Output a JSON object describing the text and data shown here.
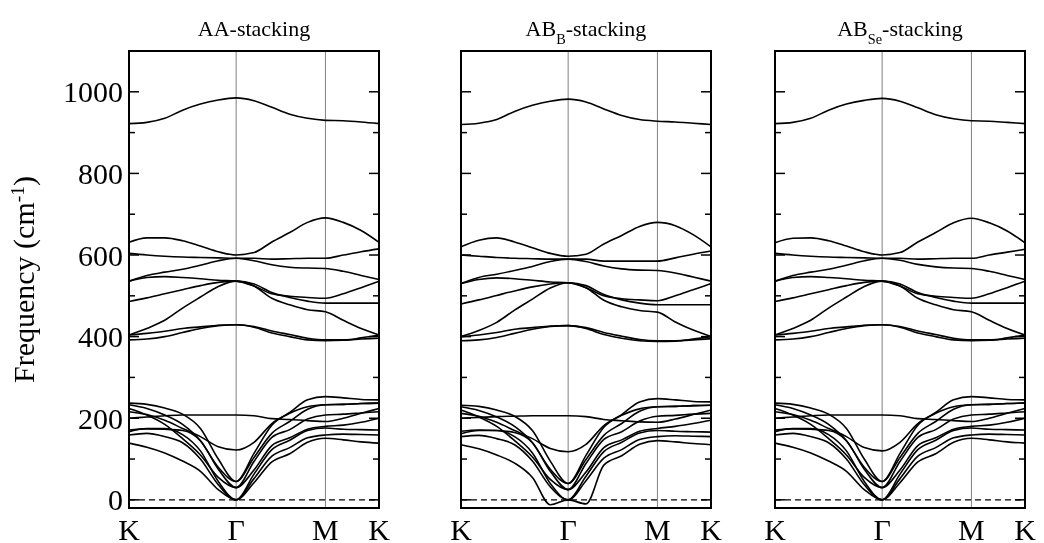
{
  "chart_data": [
    {
      "type": "line",
      "title": "AA-stacking",
      "ylabel": "Frequency (cm$^{-1}$)",
      "categories": [
        "K",
        null,
        null,
        null,
        null,
        null,
        "Γ",
        null,
        null,
        null,
        null,
        "M",
        null,
        null,
        "K"
      ],
      "ylim": [
        -20,
        1100
      ],
      "yticks": [
        0,
        {
          "value": 100,
          "label": null
        },
        200,
        {
          "value": 300,
          "label": null
        },
        400,
        {
          "value": 500,
          "label": null
        },
        600,
        {
          "value": 700,
          "label": null
        },
        800,
        {
          "value": 900,
          "label": null
        },
        1000
      ],
      "ref_lines": [
        {
          "axis": "x",
          "value": "Γ",
          "color": "#808080"
        },
        {
          "axis": "x",
          "value": "M",
          "color": "#808080"
        },
        {
          "axis": "y",
          "value": 0,
          "color": "#000000",
          "line_style": "dashed"
        }
      ],
      "series": [
        {
          "color": "#000000",
          "values": [
            922,
            925,
            935,
            955,
            970,
            980,
            985,
            978,
            962,
            945,
            935,
            930,
            929,
            926,
            922
          ]
        },
        {
          "color": "#000000",
          "values": [
            631,
            642,
            642,
            635,
            622,
            608,
            600,
            606,
            632,
            655,
            680,
            691,
            680,
            660,
            631
          ]
        },
        {
          "color": "#000000",
          "values": [
            604,
            600,
            597,
            595,
            594,
            593,
            592,
            586,
            576,
            570,
            568,
            567,
            560,
            550,
            540
          ]
        },
        {
          "color": "#000000",
          "values": [
            536,
            550,
            558,
            565,
            575,
            586,
            592,
            592,
            590,
            591,
            592,
            592,
            600,
            608,
            615
          ]
        },
        {
          "color": "#000000",
          "values": [
            536,
            545,
            547,
            545,
            542,
            538,
            536,
            524,
            505,
            499,
            496,
            494,
            505,
            520,
            536
          ]
        },
        {
          "color": "#000000",
          "values": [
            486,
            495,
            505,
            515,
            525,
            533,
            536,
            529,
            508,
            496,
            487,
            482,
            482,
            482,
            482
          ]
        },
        {
          "color": "#000000",
          "values": [
            404,
            420,
            440,
            470,
            497,
            523,
            536,
            524,
            494,
            478,
            466,
            461,
            440,
            420,
            404
          ]
        },
        {
          "color": "#000000",
          "values": [
            404,
            408,
            413,
            420,
            424,
            428,
            429,
            425,
            414,
            405,
            396,
            392,
            392,
            394,
            396
          ]
        },
        {
          "color": "#000000",
          "values": [
            392,
            394,
            400,
            410,
            420,
            427,
            429,
            423,
            409,
            400,
            392,
            390,
            391,
            397,
            404
          ]
        },
        {
          "color": "#000000",
          "values": [
            200,
            203,
            206,
            208,
            208,
            208,
            208,
            206,
            199,
            197,
            194,
            192,
            200,
            212,
            224
          ]
        },
        {
          "color": "#000000",
          "values": [
            216,
            209,
            195,
            175,
            155,
            130,
            122,
            141,
            187,
            212,
            228,
            233,
            234,
            236,
            237
          ]
        },
        {
          "color": "#000000",
          "values": [
            237,
            234,
            225,
            210,
            175,
            100,
            45,
            114,
            183,
            214,
            245,
            253,
            250,
            246,
            245
          ]
        },
        {
          "color": "#000000",
          "values": [
            233,
            224,
            208,
            185,
            145,
            80,
            45,
            104,
            163,
            192,
            222,
            233,
            234,
            236,
            237
          ]
        },
        {
          "color": "#000000",
          "values": [
            224,
            208,
            185,
            150,
            110,
            55,
            30,
            94,
            153,
            172,
            198,
            208,
            210,
            213,
            216
          ]
        },
        {
          "color": "#000000",
          "values": [
            171,
            174,
            173,
            170,
            145,
            75,
            30,
            73,
            133,
            152,
            173,
            180,
            183,
            190,
            200
          ]
        },
        {
          "color": "#000000",
          "values": [
            167,
            175,
            175,
            160,
            120,
            45,
            0,
            63,
            123,
            146,
            170,
            176,
            173,
            172,
            171
          ]
        },
        {
          "color": "#000000",
          "values": [
            159,
            163,
            155,
            140,
            100,
            37,
            0,
            52,
            107,
            128,
            152,
            159,
            161,
            160,
            159
          ]
        },
        {
          "color": "#000000",
          "values": [
            139,
            129,
            115,
            95,
            70,
            25,
            0,
            42,
            93,
            113,
            141,
            151,
            147,
            142,
            139
          ]
        }
      ]
    },
    {
      "type": "line",
      "title": "AB$_{B}$-stacking",
      "tick_labels": "x",
      "categories": [
        "K",
        null,
        null,
        null,
        null,
        null,
        "Γ",
        null,
        null,
        null,
        null,
        "M",
        null,
        null,
        "K"
      ],
      "ylim": [
        -20,
        1100
      ],
      "yticks": [
        0,
        {
          "value": 100,
          "label": null
        },
        200,
        {
          "value": 300,
          "label": null
        },
        400,
        {
          "value": 500,
          "label": null
        },
        600,
        {
          "value": 700,
          "label": null
        },
        800,
        {
          "value": 900,
          "label": null
        },
        1000
      ],
      "ref_lines": [
        {
          "axis": "x",
          "value": "Γ",
          "color": "#808080"
        },
        {
          "axis": "x",
          "value": "M",
          "color": "#808080"
        },
        {
          "axis": "y",
          "value": 0,
          "color": "#000000",
          "line_style": "dashed"
        }
      ],
      "series": [
        {
          "color": "#000000",
          "values": [
            920,
            923,
            932,
            952,
            967,
            977,
            982,
            975,
            958,
            942,
            932,
            928,
            926,
            923,
            920
          ]
        },
        {
          "color": "#000000",
          "values": [
            620,
            636,
            642,
            632,
            618,
            604,
            597,
            602,
            627,
            648,
            670,
            680,
            672,
            650,
            620
          ]
        },
        {
          "color": "#000000",
          "values": [
            600,
            597,
            594,
            592,
            591,
            590,
            590,
            584,
            573,
            566,
            563,
            562,
            556,
            546,
            536
          ]
        },
        {
          "color": "#000000",
          "values": [
            530,
            545,
            553,
            562,
            572,
            584,
            590,
            590,
            585,
            585,
            585,
            585,
            593,
            602,
            610
          ]
        },
        {
          "color": "#000000",
          "values": [
            530,
            540,
            544,
            542,
            538,
            534,
            532,
            520,
            500,
            493,
            490,
            488,
            500,
            515,
            530
          ]
        },
        {
          "color": "#000000",
          "values": [
            480,
            490,
            501,
            512,
            522,
            529,
            532,
            525,
            503,
            490,
            482,
            478,
            478,
            478,
            478
          ]
        },
        {
          "color": "#000000",
          "values": [
            400,
            415,
            435,
            465,
            492,
            519,
            532,
            520,
            489,
            473,
            464,
            460,
            436,
            416,
            400
          ]
        },
        {
          "color": "#000000",
          "values": [
            400,
            404,
            410,
            418,
            422,
            426,
            427,
            422,
            410,
            401,
            393,
            390,
            390,
            392,
            395
          ]
        },
        {
          "color": "#000000",
          "values": [
            390,
            392,
            398,
            408,
            418,
            425,
            427,
            420,
            405,
            396,
            390,
            388,
            389,
            394,
            400
          ]
        },
        {
          "color": "#000000",
          "values": [
            200,
            202,
            204,
            205,
            206,
            206,
            206,
            204,
            197,
            194,
            191,
            190,
            198,
            209,
            220
          ]
        },
        {
          "color": "#000000",
          "values": [
            212,
            205,
            190,
            170,
            150,
            126,
            118,
            136,
            182,
            207,
            223,
            228,
            229,
            231,
            232
          ]
        },
        {
          "color": "#000000",
          "values": [
            232,
            229,
            220,
            205,
            170,
            95,
            40,
            109,
            178,
            209,
            240,
            248,
            245,
            241,
            240
          ]
        },
        {
          "color": "#000000",
          "values": [
            228,
            219,
            203,
            180,
            140,
            75,
            40,
            99,
            158,
            187,
            217,
            228,
            229,
            231,
            232
          ]
        },
        {
          "color": "#000000",
          "values": [
            220,
            203,
            180,
            145,
            105,
            50,
            25,
            89,
            148,
            167,
            193,
            205,
            207,
            210,
            212
          ]
        },
        {
          "color": "#000000",
          "values": [
            168,
            171,
            170,
            165,
            140,
            70,
            25,
            68,
            128,
            147,
            168,
            175,
            180,
            187,
            195
          ]
        },
        {
          "color": "#000000",
          "values": [
            162,
            170,
            170,
            155,
            115,
            40,
            0,
            58,
            118,
            141,
            164,
            170,
            168,
            167,
            166
          ]
        },
        {
          "color": "#000000",
          "values": [
            155,
            158,
            150,
            135,
            95,
            32,
            0,
            47,
            102,
            123,
            148,
            155,
            157,
            156,
            155
          ]
        },
        {
          "color": "#000000",
          "values": [
            135,
            125,
            110,
            90,
            55,
            -12,
            0,
            -10,
            85,
            108,
            136,
            145,
            142,
            138,
            135
          ]
        }
      ]
    },
    {
      "type": "line",
      "title": "AB$_{Se}$-stacking",
      "tick_labels": "x",
      "categories": [
        "K",
        null,
        null,
        null,
        null,
        null,
        "Γ",
        null,
        null,
        null,
        null,
        "M",
        null,
        null,
        "K"
      ],
      "ylim": [
        -20,
        1100
      ],
      "yticks": [
        0,
        {
          "value": 100,
          "label": null
        },
        200,
        {
          "value": 300,
          "label": null
        },
        400,
        {
          "value": 500,
          "label": null
        },
        600,
        {
          "value": 700,
          "label": null
        },
        800,
        {
          "value": 900,
          "label": null
        },
        1000
      ],
      "ref_lines": [
        {
          "axis": "x",
          "value": "Γ",
          "color": "#808080"
        },
        {
          "axis": "x",
          "value": "M",
          "color": "#808080"
        },
        {
          "axis": "y",
          "value": 0,
          "color": "#000000",
          "line_style": "dashed"
        }
      ],
      "series": [
        {
          "color": "#000000",
          "values": [
            922,
            925,
            935,
            955,
            970,
            979,
            984,
            977,
            961,
            944,
            934,
            929,
            928,
            925,
            922
          ]
        },
        {
          "color": "#000000",
          "values": [
            630,
            641,
            642,
            635,
            622,
            608,
            600,
            606,
            632,
            655,
            679,
            690,
            679,
            659,
            630
          ]
        },
        {
          "color": "#000000",
          "values": [
            604,
            600,
            597,
            595,
            594,
            593,
            592,
            587,
            577,
            571,
            568,
            567,
            560,
            550,
            540
          ]
        },
        {
          "color": "#000000",
          "values": [
            536,
            550,
            558,
            565,
            575,
            586,
            592,
            592,
            590,
            591,
            592,
            592,
            600,
            607,
            614
          ]
        },
        {
          "color": "#000000",
          "values": [
            536,
            545,
            547,
            545,
            542,
            538,
            536,
            524,
            505,
            499,
            496,
            494,
            505,
            520,
            536
          ]
        },
        {
          "color": "#000000",
          "values": [
            486,
            495,
            505,
            515,
            525,
            533,
            536,
            529,
            508,
            496,
            487,
            482,
            482,
            482,
            482
          ]
        },
        {
          "color": "#000000",
          "values": [
            404,
            420,
            440,
            470,
            497,
            523,
            536,
            524,
            494,
            478,
            466,
            461,
            440,
            420,
            404
          ]
        },
        {
          "color": "#000000",
          "values": [
            404,
            408,
            413,
            420,
            424,
            428,
            429,
            425,
            414,
            405,
            396,
            392,
            392,
            394,
            396
          ]
        },
        {
          "color": "#000000",
          "values": [
            392,
            394,
            400,
            410,
            420,
            427,
            429,
            423,
            409,
            400,
            392,
            390,
            391,
            397,
            404
          ]
        },
        {
          "color": "#000000",
          "values": [
            200,
            203,
            206,
            208,
            208,
            208,
            208,
            206,
            199,
            197,
            194,
            192,
            200,
            212,
            224
          ]
        },
        {
          "color": "#000000",
          "values": [
            216,
            209,
            195,
            175,
            155,
            128,
            120,
            141,
            187,
            212,
            228,
            233,
            234,
            236,
            237
          ]
        },
        {
          "color": "#000000",
          "values": [
            237,
            234,
            225,
            210,
            175,
            100,
            45,
            114,
            183,
            214,
            245,
            253,
            250,
            246,
            245
          ]
        },
        {
          "color": "#000000",
          "values": [
            233,
            224,
            208,
            185,
            145,
            80,
            45,
            104,
            163,
            192,
            222,
            233,
            234,
            236,
            237
          ]
        },
        {
          "color": "#000000",
          "values": [
            224,
            208,
            185,
            150,
            110,
            55,
            30,
            94,
            153,
            172,
            198,
            208,
            210,
            213,
            216
          ]
        },
        {
          "color": "#000000",
          "values": [
            171,
            174,
            173,
            170,
            145,
            75,
            30,
            73,
            133,
            152,
            173,
            180,
            183,
            190,
            200
          ]
        },
        {
          "color": "#000000",
          "values": [
            167,
            175,
            175,
            160,
            120,
            45,
            0,
            63,
            123,
            146,
            170,
            176,
            173,
            172,
            171
          ]
        },
        {
          "color": "#000000",
          "values": [
            159,
            163,
            155,
            140,
            100,
            37,
            0,
            52,
            107,
            128,
            152,
            159,
            161,
            160,
            159
          ]
        },
        {
          "color": "#000000",
          "values": [
            139,
            129,
            115,
            95,
            70,
            25,
            0,
            42,
            93,
            113,
            141,
            151,
            147,
            142,
            139
          ]
        }
      ]
    }
  ]
}
